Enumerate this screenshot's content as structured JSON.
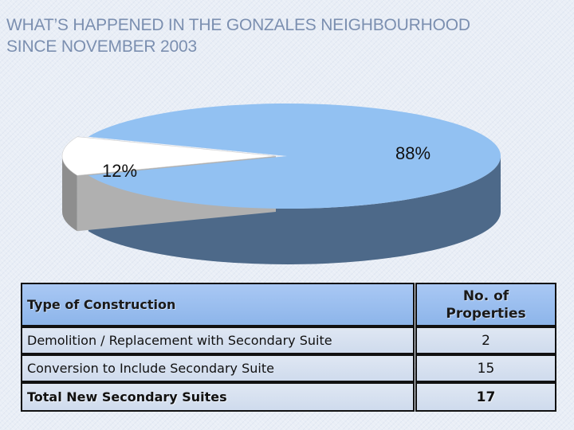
{
  "title": {
    "line1": "WHAT’S HAPPENED IN THE GONZALES NEIGHBOURHOOD",
    "line2": "SINCE NOVEMBER 2003"
  },
  "chart_data": {
    "type": "pie",
    "title": "WHAT’S HAPPENED IN THE GONZALES NEIGHBOURHOOD SINCE NOVEMBER 2003",
    "slices": [
      {
        "label": "12%",
        "value": 12,
        "color": "#ffffff",
        "side_color": "#8e8e8e"
      },
      {
        "label": "88%",
        "value": 88,
        "color": "#92c1f2",
        "side_color": "#4d6989"
      }
    ]
  },
  "table": {
    "header": {
      "type_label": "Type of Construction",
      "count_label_line1": "No. of",
      "count_label_line2": "Properties"
    },
    "rows": [
      {
        "type": "Demolition / Replacement with Secondary Suite",
        "count": "2"
      },
      {
        "type": "Conversion to Include Secondary Suite",
        "count": "15"
      }
    ],
    "total": {
      "type": "Total New Secondary Suites",
      "count": "17"
    }
  }
}
